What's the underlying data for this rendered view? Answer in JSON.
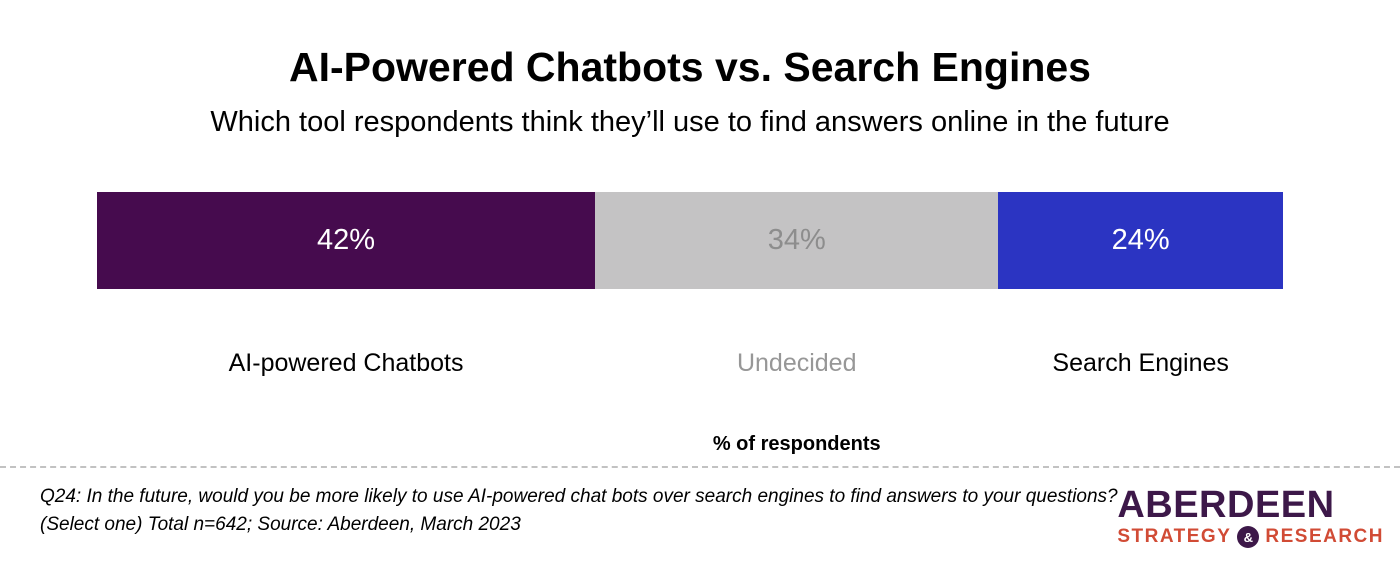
{
  "title": "AI-Powered Chatbots vs. Search Engines",
  "subtitle": "Which tool respondents think they’ll use to find answers online in the future",
  "axis_label": "% of respondents",
  "footnote": {
    "line1": "Q24: In the future, would you be more likely to use AI-powered chat bots over search engines to find answers to your questions?",
    "line2": "(Select one) Total n=642; Source: Aberdeen, March 2023"
  },
  "logo": {
    "name": "ABERDEEN",
    "sub_left": "STRATEGY",
    "ampersand": "&",
    "sub_right": "RESEARCH",
    "purple": "#3D1849",
    "red": "#D14B35"
  },
  "chart_data": {
    "type": "bar",
    "variant": "horizontal-stacked-100pct",
    "title": "AI-Powered Chatbots vs. Search Engines",
    "subtitle": "Which tool respondents think they’ll use to find answers online in the future",
    "xlabel": "% of respondents",
    "unit": "%",
    "categories": [
      "AI-powered Chatbots",
      "Undecided",
      "Search Engines"
    ],
    "values": [
      42,
      34,
      24
    ],
    "legend": "none",
    "grid": false,
    "segments": [
      {
        "label": "AI-powered Chatbots",
        "value": 42,
        "display": "42%",
        "color": "#460B4E",
        "value_text_color": "#FFFFFF",
        "label_color": "#000000"
      },
      {
        "label": "Undecided",
        "value": 34,
        "display": "34%",
        "color": "#C4C3C4",
        "value_text_color": "#8D8D8D",
        "label_color": "#979797"
      },
      {
        "label": "Search Engines",
        "value": 24,
        "display": "24%",
        "color": "#2B34C2",
        "value_text_color": "#FFFFFF",
        "label_color": "#000000"
      }
    ]
  }
}
